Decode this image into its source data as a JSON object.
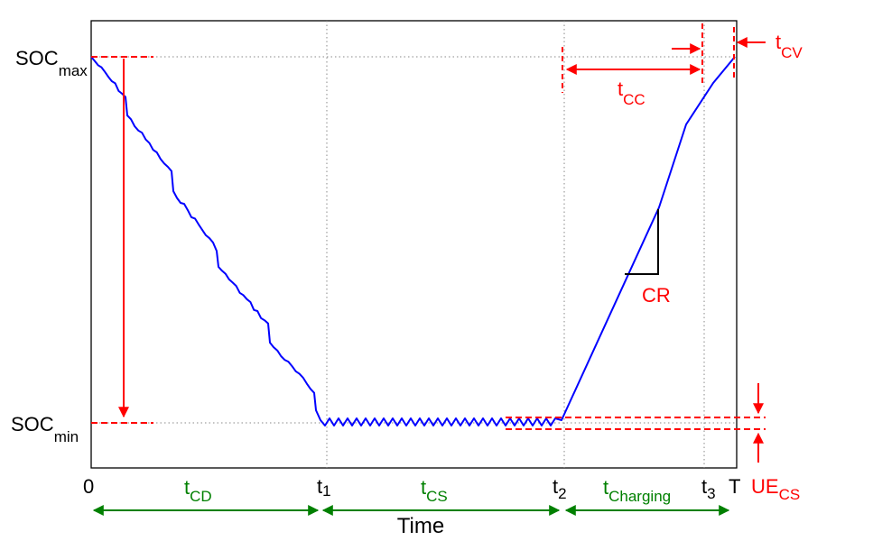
{
  "chart_data": {
    "type": "line",
    "title": "",
    "xlabel": "Time",
    "ylabel": "",
    "curve": "SOC",
    "soc_labels": {
      "max": {
        "main": "SOC",
        "sub": "max"
      },
      "min": {
        "main": "SOC",
        "sub": "min"
      }
    },
    "x_ticks": {
      "zero": "0",
      "t1": {
        "main": "t",
        "sub": "1"
      },
      "t2": {
        "main": "t",
        "sub": "2"
      },
      "t3": {
        "main": "t",
        "sub": "3"
      },
      "T": "T"
    },
    "phases": [
      {
        "main": "t",
        "sub": "CD"
      },
      {
        "main": "t",
        "sub": "CS"
      },
      {
        "main": "t",
        "sub": "Charging"
      }
    ],
    "annotations": {
      "tcc": {
        "main": "t",
        "sub": "CC"
      },
      "tcv": {
        "main": "t",
        "sub": "CV"
      },
      "cr": "CR",
      "ue": {
        "main": "UE",
        "sub": "CS"
      }
    },
    "colors": {
      "curve": "#0000ff",
      "annotation": "#ff0000",
      "phase": "#008000",
      "axis": "#000000"
    }
  }
}
